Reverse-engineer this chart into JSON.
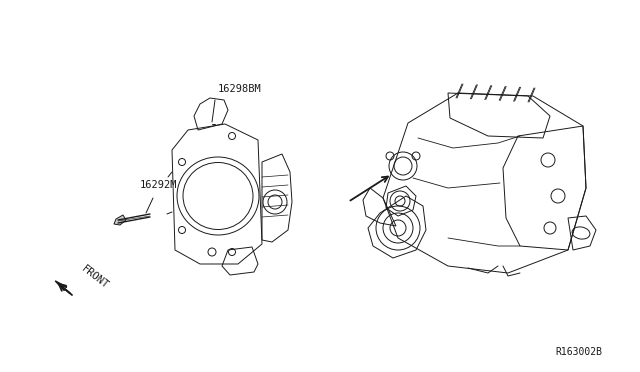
{
  "background_color": "#ffffff",
  "line_color": "#1a1a1a",
  "label_16292M": "16292M",
  "label_16298BM": "16298BM",
  "label_front": "FRONT",
  "ref_number": "R163002B",
  "fig_width": 6.4,
  "fig_height": 3.72,
  "dpi": 100
}
